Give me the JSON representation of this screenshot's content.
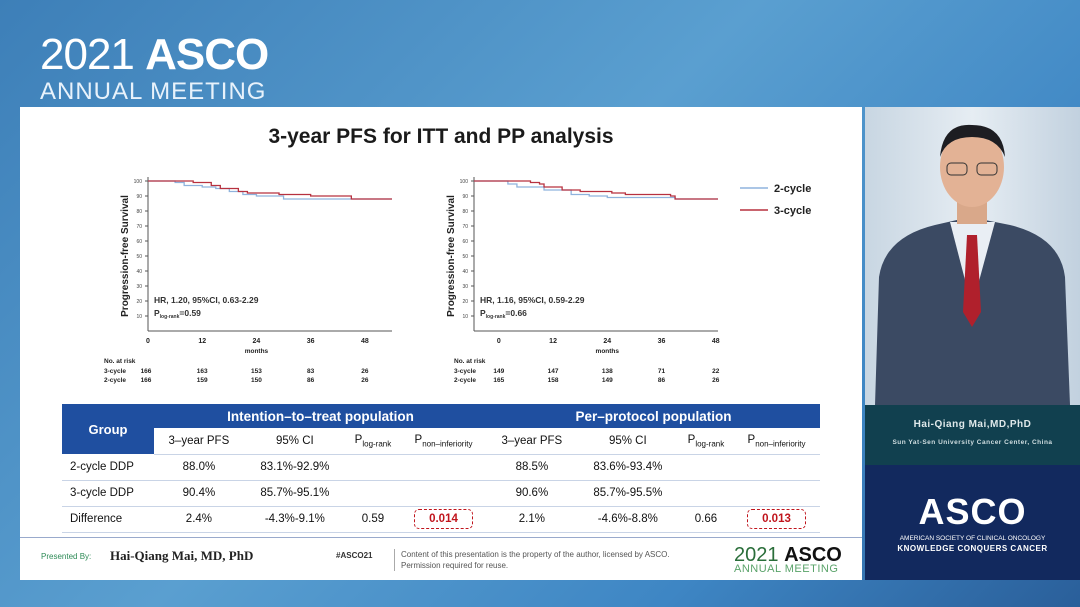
{
  "branding": {
    "year": "2021",
    "name": "ASCO",
    "subtitle": "ANNUAL MEETING"
  },
  "slide": {
    "title": "3-year PFS for ITT and PP analysis"
  },
  "chart_data": [
    {
      "type": "line",
      "title": "",
      "xlabel": "months",
      "ylabel": "Progression-free Survival",
      "xticks": [
        0,
        12,
        24,
        36,
        48
      ],
      "yticks": [
        10,
        20,
        30,
        40,
        50,
        60,
        70,
        80,
        90,
        100
      ],
      "xlim": [
        0,
        54
      ],
      "ylim": [
        0,
        100
      ],
      "annotation": {
        "hr": "HR, 1.20, 95%CI, 0.63-2.29",
        "p_prefix": "P",
        "p_sub": "log-rank",
        "p_value": "=0.59"
      },
      "series": [
        {
          "name": "2-cycle",
          "color": "#8fb3dd",
          "points": [
            [
              0,
              100
            ],
            [
              6,
              99
            ],
            [
              8,
              97
            ],
            [
              12,
              96
            ],
            [
              15,
              95
            ],
            [
              18,
              93
            ],
            [
              21,
              91
            ],
            [
              24,
              90
            ],
            [
              30,
              88
            ],
            [
              54,
              88
            ]
          ]
        },
        {
          "name": "3-cycle",
          "color": "#b7313f",
          "points": [
            [
              0,
              100
            ],
            [
              8,
              100
            ],
            [
              10,
              99
            ],
            [
              14,
              97
            ],
            [
              16,
              95
            ],
            [
              20,
              93
            ],
            [
              22,
              92
            ],
            [
              28,
              92
            ],
            [
              29,
              91
            ],
            [
              33,
              91
            ],
            [
              36,
              90
            ],
            [
              44,
              90
            ],
            [
              45,
              88
            ],
            [
              54,
              88
            ]
          ]
        }
      ],
      "at_risk": {
        "label": "No. at risk",
        "rows": [
          {
            "name": "3-cycle",
            "values": [
              "166",
              "163",
              "153",
              "83",
              "26"
            ]
          },
          {
            "name": "2-cycle",
            "values": [
              "166",
              "159",
              "150",
              "86",
              "26"
            ]
          }
        ]
      }
    },
    {
      "type": "line",
      "title": "",
      "xlabel": "months",
      "ylabel": "Progression-free Survival",
      "xticks": [
        0,
        12,
        24,
        36,
        48
      ],
      "yticks": [
        10,
        20,
        30,
        40,
        50,
        60,
        70,
        80,
        90,
        100
      ],
      "xlim": [
        -5.5,
        48.5
      ],
      "ylim": [
        0,
        100
      ],
      "annotation": {
        "hr": "HR, 1.16, 95%CI, 0.59-2.29",
        "p_prefix": "P",
        "p_sub": "log-rank",
        "p_value": "=0.66"
      },
      "series": [
        {
          "name": "2-cycle",
          "color": "#8fb3dd",
          "points": [
            [
              -5.5,
              100
            ],
            [
              1,
              100
            ],
            [
              2,
              98
            ],
            [
              4,
              96
            ],
            [
              8,
              96
            ],
            [
              10,
              94
            ],
            [
              16,
              91
            ],
            [
              20,
              90
            ],
            [
              24,
              89
            ],
            [
              38,
              89
            ],
            [
              39,
              88
            ],
            [
              48.5,
              88
            ]
          ]
        },
        {
          "name": "3-cycle",
          "color": "#b7313f",
          "points": [
            [
              -5.5,
              100
            ],
            [
              5,
              100
            ],
            [
              7,
              99
            ],
            [
              9,
              98
            ],
            [
              10,
              96
            ],
            [
              14,
              94
            ],
            [
              18,
              93
            ],
            [
              24,
              93
            ],
            [
              25,
              92
            ],
            [
              28,
              91
            ],
            [
              38,
              90
            ],
            [
              39,
              88
            ],
            [
              48.5,
              88
            ]
          ]
        }
      ],
      "at_risk": {
        "label": "No. at risk",
        "rows": [
          {
            "name": "3-cycle",
            "values": [
              "149",
              "147",
              "138",
              "71",
              "22"
            ]
          },
          {
            "name": "2-cycle",
            "values": [
              "165",
              "158",
              "149",
              "86",
              "26"
            ]
          }
        ]
      },
      "legend": {
        "placement": "right",
        "entries": [
          "2-cycle",
          "3-cycle"
        ]
      }
    }
  ],
  "table": {
    "group": "Group",
    "itt": "Intention–to–treat population",
    "pp": "Per–protocol population",
    "cols": [
      "3–year PFS",
      "95% CI",
      "P",
      "non–inferiority"
    ],
    "col_plog_sub": "log-rank",
    "rows": [
      {
        "label": "2-cycle DDP",
        "itt": [
          "88.0%",
          "83.1%-92.9%",
          "",
          ""
        ],
        "pp": [
          "88.5%",
          "83.6%-93.4%",
          "",
          ""
        ]
      },
      {
        "label": "3-cycle DDP",
        "itt": [
          "90.4%",
          "85.7%-95.1%",
          "",
          ""
        ],
        "pp": [
          "90.6%",
          "85.7%-95.5%",
          "",
          ""
        ]
      },
      {
        "label": "Difference",
        "itt": [
          "2.4%",
          "-4.3%-9.1%",
          "0.59",
          "0.014"
        ],
        "pp": [
          "2.1%",
          "-4.6%-8.8%",
          "0.66",
          "0.013"
        ]
      }
    ]
  },
  "footer": {
    "presented_by": "Presented By:",
    "presenter": "Hai-Qiang Mai, MD, PhD",
    "hashtag": "#ASCO21",
    "notice_1": "Content of this presentation is the property of the author, licensed by ASCO.",
    "notice_2": "Permission required for reuse.",
    "logo_year": "2021",
    "logo_name": "ASCO",
    "logo_sub": "ANNUAL MEETING"
  },
  "speaker": {
    "name": "Hai-Qiang Mai,MD,PhD",
    "affiliation": "Sun Yat-Sen University Cancer Center, China"
  },
  "asco_box": {
    "name": "ASCO",
    "line1": "AMERICAN SOCIETY OF CLINICAL ONCOLOGY",
    "line2": "KNOWLEDGE CONQUERS CANCER"
  }
}
